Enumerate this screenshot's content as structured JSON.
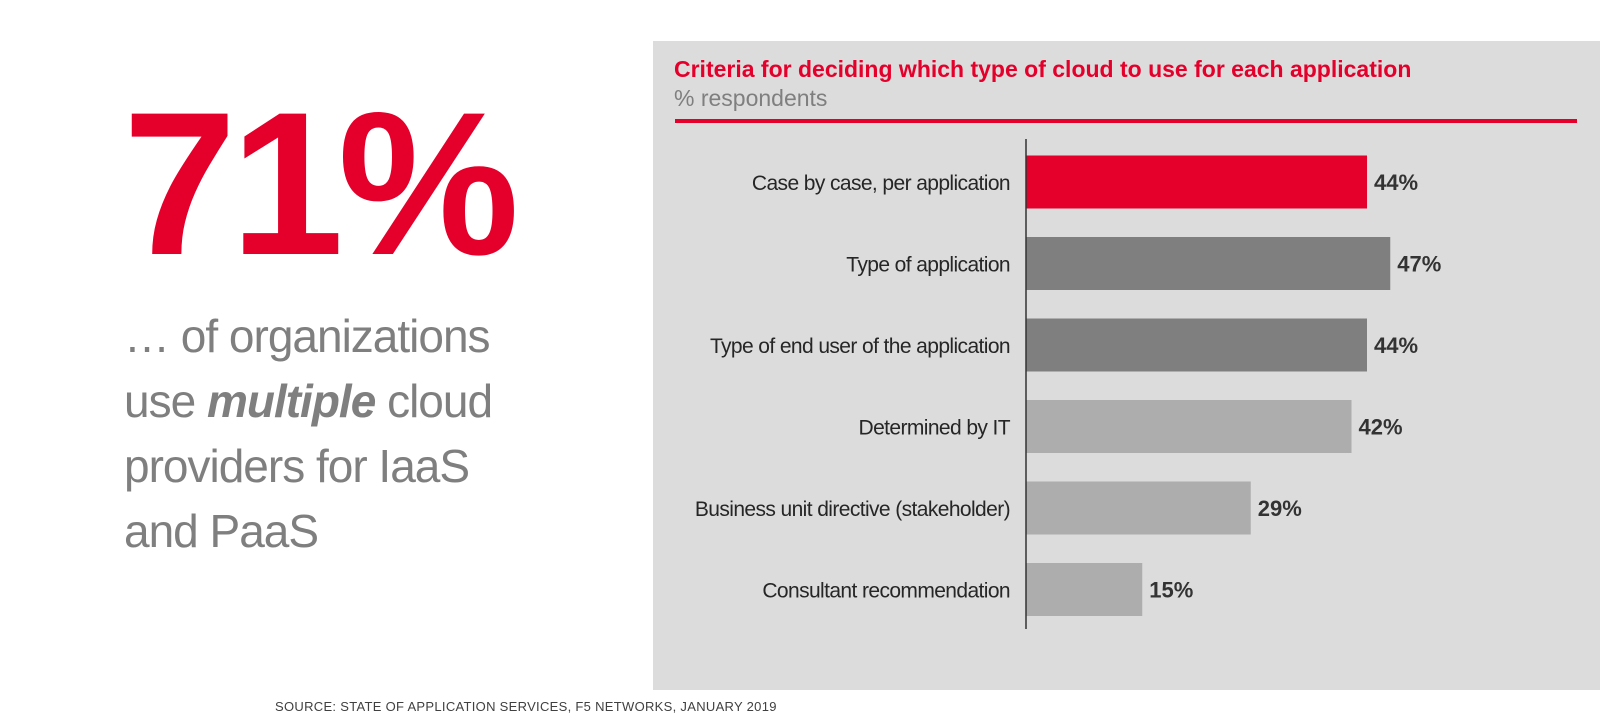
{
  "headline": {
    "stat": "71%",
    "line1": "… of organizations",
    "line2_pre": "use ",
    "line2_emph": "multiple",
    "line2_post": " cloud",
    "line3": "providers for IaaS",
    "line4": "and PaaS"
  },
  "colors": {
    "accent": "#e4002b",
    "bar_dark": "#7f7f7f",
    "bar_light": "#adadad",
    "panel_bg": "#dcdcdc",
    "label_text": "#262626",
    "value_text": "#333333"
  },
  "source": "SOURCE: STATE OF APPLICATION SERVICES, F5 NETWORKS, JANUARY 2019",
  "chart_data": {
    "type": "bar",
    "orientation": "horizontal",
    "title": "Criteria for deciding which type of cloud to use for each application",
    "subtitle": "% respondents",
    "categories": [
      "Case by case, per application",
      "Type of application",
      "Type of end user of the application",
      "Determined by IT",
      "Business unit directive (stakeholder)",
      "Consultant recommendation"
    ],
    "values": [
      44,
      47,
      44,
      42,
      29,
      15
    ],
    "value_labels": [
      "44%",
      "47%",
      "44%",
      "42%",
      "29%",
      "15%"
    ],
    "bar_colors": [
      "#e4002b",
      "#7f7f7f",
      "#7f7f7f",
      "#adadad",
      "#adadad",
      "#adadad"
    ],
    "xlim": [
      0,
      100
    ],
    "grid": false,
    "legend": "none"
  }
}
